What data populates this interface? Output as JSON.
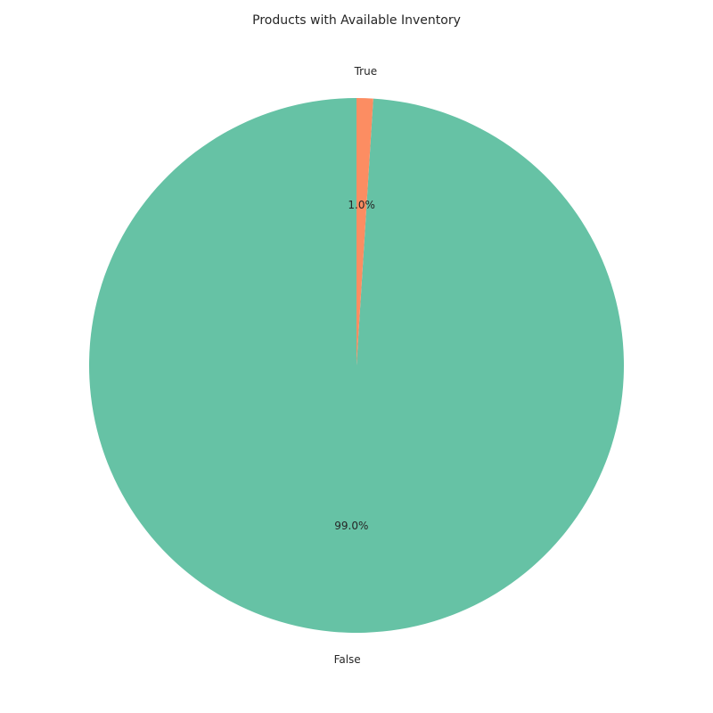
{
  "chart_data": {
    "type": "pie",
    "title": "Products with Available Inventory",
    "slices": [
      {
        "label": "False",
        "value": 99.0,
        "pct_label": "99.0%",
        "color": "#66c2a5"
      },
      {
        "label": "True",
        "value": 1.0,
        "pct_label": "1.0%",
        "color": "#fc8d62"
      }
    ],
    "start_angle_deg": 90,
    "direction": "counterclockwise"
  }
}
